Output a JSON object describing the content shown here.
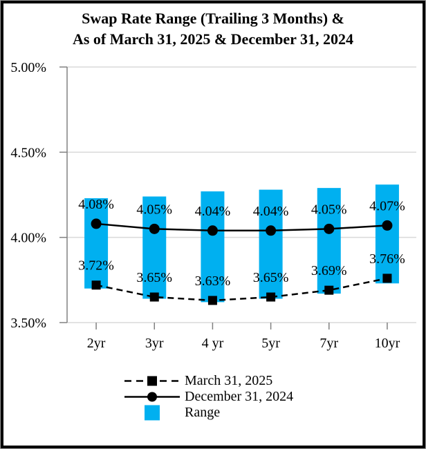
{
  "title": {
    "line1": "Swap Rate Range (Trailing 3 Months) &",
    "line2": "As of March 31, 2025 & December 31, 2024"
  },
  "colors": {
    "range_bar": "#00B0F0",
    "series_line": "#000000",
    "gridline": "#d9d9d9",
    "axis": "#808080",
    "frame": "#000000",
    "text": "#000000"
  },
  "chart_data": {
    "type": "bar",
    "subtype": "floating-range-bars-with-line-series",
    "title": "Swap Rate Range (Trailing 3 Months) & As of March 31, 2025 & December 31, 2024",
    "categories": [
      "2yr",
      "3yr",
      "4 yr",
      "5yr",
      "7yr",
      "10yr"
    ],
    "xlabel": "",
    "ylabel": "",
    "ylim": [
      3.5,
      5.0
    ],
    "yticks": [
      {
        "value": 3.5,
        "label": "3.50%"
      },
      {
        "value": 4.0,
        "label": "4.00%"
      },
      {
        "value": 4.5,
        "label": "4.50%"
      },
      {
        "value": 5.0,
        "label": "5.00%"
      }
    ],
    "grid": true,
    "legend_position": "bottom",
    "range_bars": {
      "name": "Range",
      "color": "#00B0F0",
      "low": [
        3.7,
        3.64,
        3.62,
        3.64,
        3.67,
        3.73
      ],
      "high": [
        4.23,
        4.24,
        4.27,
        4.28,
        4.29,
        4.31
      ]
    },
    "series": [
      {
        "name": "March 31, 2025",
        "type": "line",
        "line_style": "dashed",
        "marker": "square",
        "color": "#000000",
        "values": [
          3.72,
          3.65,
          3.63,
          3.65,
          3.69,
          3.76
        ],
        "labels": [
          "3.72%",
          "3.65%",
          "3.63%",
          "3.65%",
          "3.69%",
          "3.76%"
        ]
      },
      {
        "name": "December 31, 2024",
        "type": "line",
        "line_style": "solid",
        "marker": "circle",
        "color": "#000000",
        "values": [
          4.08,
          4.05,
          4.04,
          4.04,
          4.05,
          4.07
        ],
        "labels": [
          "4.08%",
          "4.05%",
          "4.04%",
          "4.04%",
          "4.05%",
          "4.07%"
        ]
      }
    ]
  },
  "legend": {
    "items": [
      {
        "label": "March 31, 2025",
        "sample": "dashed-line-square-marker"
      },
      {
        "label": "December 31, 2024",
        "sample": "solid-line-circle-marker"
      },
      {
        "label": "Range",
        "sample": "blue-box"
      }
    ]
  }
}
